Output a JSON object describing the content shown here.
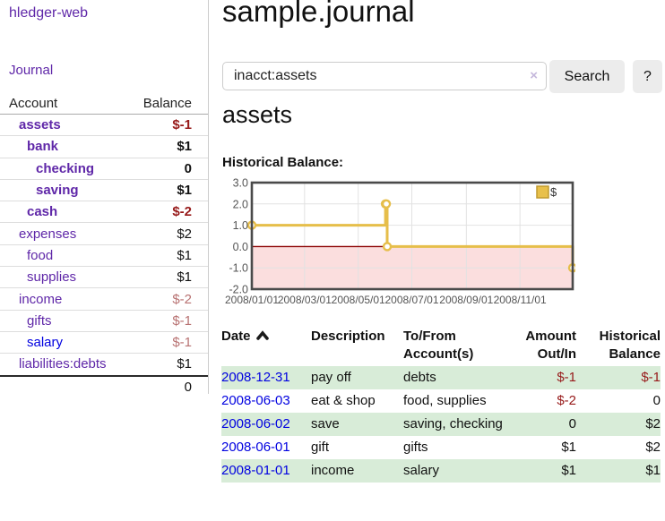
{
  "sidebar": {
    "brand": "hledger-web",
    "nav": [
      {
        "label": "Journal"
      }
    ],
    "accounts_table": {
      "headers": [
        "Account",
        "Balance"
      ],
      "rows": [
        {
          "name": "assets",
          "balance": "$-1",
          "depth": 1,
          "bold": true,
          "name_color": "purple",
          "balance_tone": "neg-strong"
        },
        {
          "name": "bank",
          "balance": "$1",
          "depth": 2,
          "bold": true,
          "name_color": "purple",
          "balance_tone": "normal"
        },
        {
          "name": "checking",
          "balance": "0",
          "depth": 3,
          "bold": true,
          "name_color": "purple",
          "balance_tone": "normal"
        },
        {
          "name": "saving",
          "balance": "$1",
          "depth": 3,
          "bold": true,
          "name_color": "purple",
          "balance_tone": "normal"
        },
        {
          "name": "cash",
          "balance": "$-2",
          "depth": 2,
          "bold": true,
          "name_color": "purple",
          "balance_tone": "neg-strong"
        },
        {
          "name": "expenses",
          "balance": "$2",
          "depth": 1,
          "bold": false,
          "name_color": "purple",
          "balance_tone": "normal"
        },
        {
          "name": "food",
          "balance": "$1",
          "depth": 2,
          "bold": false,
          "name_color": "purple",
          "balance_tone": "normal"
        },
        {
          "name": "supplies",
          "balance": "$1",
          "depth": 2,
          "bold": false,
          "name_color": "purple",
          "balance_tone": "normal"
        },
        {
          "name": "income",
          "balance": "$-2",
          "depth": 1,
          "bold": false,
          "name_color": "purple",
          "balance_tone": "neg-soft"
        },
        {
          "name": "gifts",
          "balance": "$-1",
          "depth": 2,
          "bold": false,
          "name_color": "purple",
          "balance_tone": "neg-soft"
        },
        {
          "name": "salary",
          "balance": "$-1",
          "depth": 2,
          "bold": false,
          "name_color": "blue",
          "balance_tone": "neg-soft"
        },
        {
          "name": "liabilities:debts",
          "balance": "$1",
          "depth": 1,
          "bold": false,
          "name_color": "purple",
          "balance_tone": "normal"
        }
      ],
      "total": "0"
    }
  },
  "header": {
    "title": "sample.journal"
  },
  "search": {
    "value": "inacct:assets",
    "clear_icon": "×",
    "button": "Search",
    "help_button": "?"
  },
  "account_page": {
    "heading": "assets",
    "chart_label": "Historical Balance:"
  },
  "chart_data": {
    "type": "line",
    "step": true,
    "title": "Historical Balance",
    "xlabel": "",
    "ylabel": "",
    "xlim_dates": [
      "2008-01-01",
      "2008-12-31"
    ],
    "ylim": [
      -2.0,
      3.0
    ],
    "ytick_labels": [
      "3.0",
      "2.0",
      "1.0",
      "0.0",
      "-1.0",
      "-2.0"
    ],
    "ytick_values": [
      3,
      2,
      1,
      0,
      -1,
      -2
    ],
    "xtick_dates": [
      "2008-01-01",
      "2008-03-01",
      "2008-05-01",
      "2008-07-01",
      "2008-09-01",
      "2008-11-01"
    ],
    "xtick_labels": [
      "2008/01/01",
      "2008/03/01",
      "2008/05/01",
      "2008/07/01",
      "2008/09/01",
      "2008/11/01"
    ],
    "grid": true,
    "legend": {
      "label": "$",
      "position": "top-right"
    },
    "series": [
      {
        "name": "$",
        "x": [
          "2008-01-01",
          "2008-06-01",
          "2008-06-02",
          "2008-06-03",
          "2008-12-31"
        ],
        "y": [
          1,
          2,
          2,
          0,
          -1
        ]
      }
    ],
    "colors": {
      "line": "#e6be4a",
      "marker_fill": "#ffffff",
      "zero_line": "#8b0000",
      "negative_region_fill": "#fbdede",
      "grid": "#e2e2e2",
      "border": "#4a4a4a",
      "tick_text": "#555555",
      "legend_box_fill": "#e8c04a",
      "legend_box_border": "#c19a2e"
    }
  },
  "register_table": {
    "headers": [
      "Date",
      "Description",
      "To/From Account(s)",
      "Amount Out/In",
      "Historical Balance"
    ],
    "sort_column": "Date",
    "sort_direction": "ascending",
    "rows": [
      {
        "date": "2008-12-31",
        "description": "pay off",
        "accounts": "debts",
        "amount": "$-1",
        "amount_negative": true,
        "balance": "$-1",
        "balance_negative": true
      },
      {
        "date": "2008-06-03",
        "description": "eat & shop",
        "accounts": "food, supplies",
        "amount": "$-2",
        "amount_negative": true,
        "balance": "0",
        "balance_negative": false
      },
      {
        "date": "2008-06-02",
        "description": "save",
        "accounts": "saving, checking",
        "amount": "0",
        "amount_negative": false,
        "balance": "$2",
        "balance_negative": false
      },
      {
        "date": "2008-06-01",
        "description": "gift",
        "accounts": "gifts",
        "amount": "$1",
        "amount_negative": false,
        "balance": "$2",
        "balance_negative": false
      },
      {
        "date": "2008-01-01",
        "description": "income",
        "accounts": "salary",
        "amount": "$1",
        "amount_negative": false,
        "balance": "$1",
        "balance_negative": false
      }
    ]
  },
  "colors": {
    "link_purple": "#5f27a8",
    "link_blue": "#0000e0",
    "negative_strong": "#971a1a",
    "negative_soft": "#b87272",
    "row_stripe_green": "#d8ecd8",
    "button_gray": "#ececec"
  }
}
